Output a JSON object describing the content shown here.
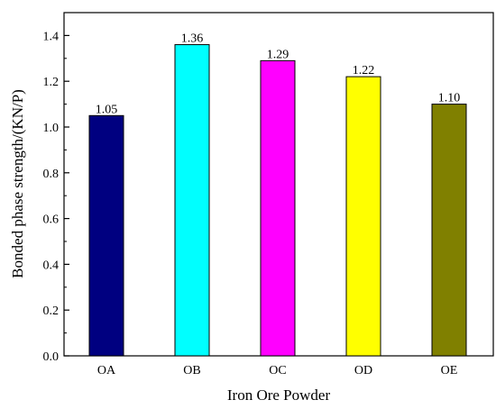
{
  "chart_data": {
    "type": "bar",
    "title": "",
    "xlabel": "Iron Ore Powder",
    "ylabel": "Bonded phase strength/(KN/P)",
    "categories": [
      "OA",
      "OB",
      "OC",
      "OD",
      "OE"
    ],
    "values": [
      1.05,
      1.36,
      1.29,
      1.22,
      1.1
    ],
    "data_labels": [
      "1.05",
      "1.36",
      "1.29",
      "1.22",
      "1.10"
    ],
    "colors": [
      "#000080",
      "#00FFFF",
      "#FF00FF",
      "#FFFF00",
      "#808000"
    ],
    "ylim": [
      0,
      1.5
    ],
    "yticks": [
      0.0,
      0.2,
      0.4,
      0.6,
      0.8,
      1.0,
      1.2,
      1.4
    ],
    "ytick_labels": [
      "0.0",
      "0.2",
      "0.4",
      "0.6",
      "0.8",
      "1.0",
      "1.2",
      "1.4"
    ],
    "grid": false,
    "legend": "none"
  }
}
